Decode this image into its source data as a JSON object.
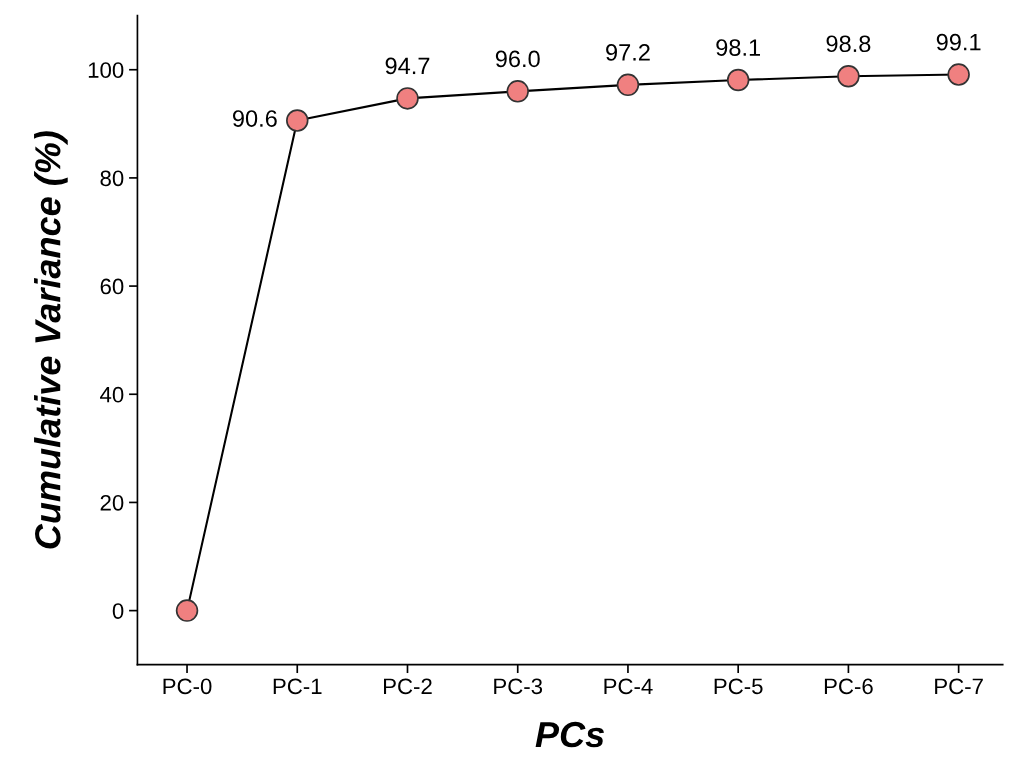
{
  "chart_data": {
    "type": "line",
    "xlabel": "PCs",
    "ylabel": "Cumulative Variance (%)",
    "categories": [
      "PC-0",
      "PC-1",
      "PC-2",
      "PC-3",
      "PC-4",
      "PC-5",
      "PC-6",
      "PC-7"
    ],
    "series": [
      {
        "color": "#f08080",
        "values": [
          0,
          90.6,
          94.7,
          96.0,
          97.2,
          98.1,
          98.8,
          99.1
        ],
        "value_labels": [
          null,
          "90.6",
          "94.7",
          "96.0",
          "97.2",
          "98.1",
          "98.8",
          "99.1"
        ]
      }
    ],
    "marker": "circle",
    "line_style": "solid",
    "ylim": [
      -10,
      110
    ],
    "yticks": [
      0,
      20,
      40,
      60,
      80,
      100
    ],
    "grid": false,
    "legend": false
  }
}
